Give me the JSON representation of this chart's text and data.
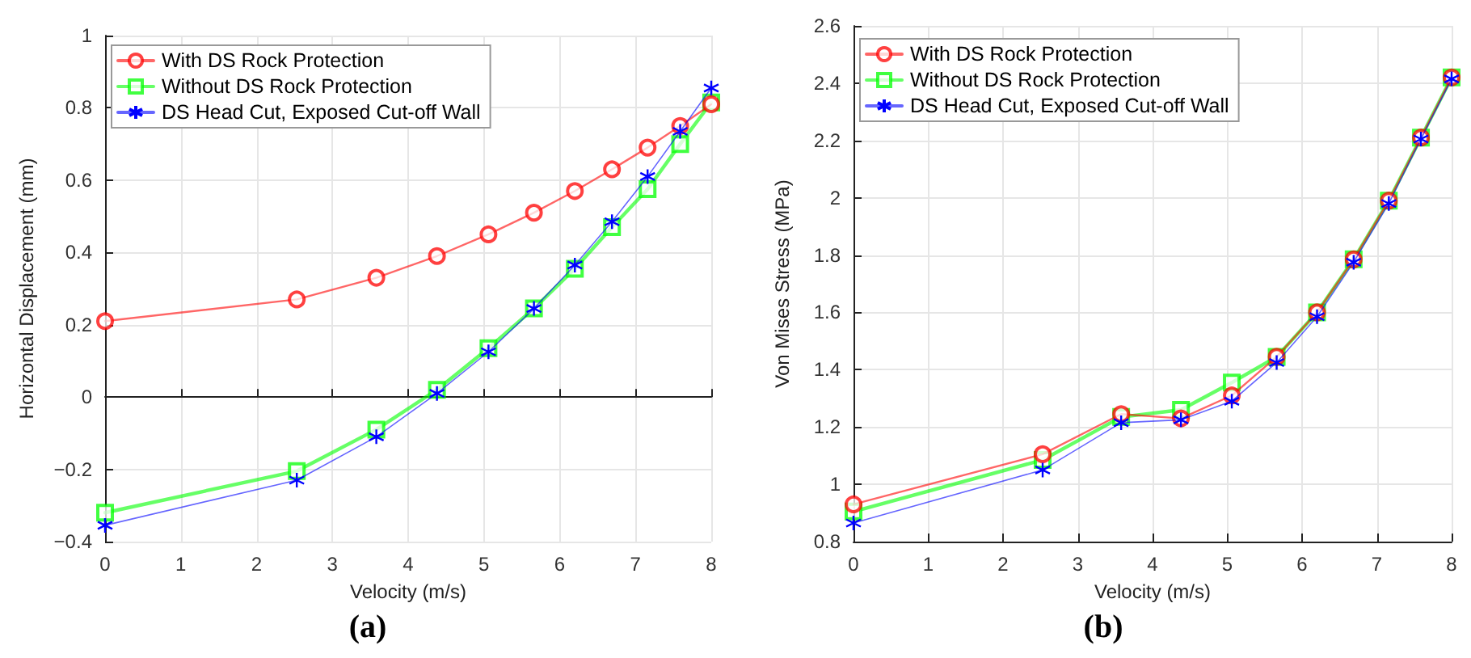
{
  "chart_data": [
    {
      "type": "line",
      "title": "(a)",
      "xlabel": "Velocity (m/s)",
      "ylabel": "Horizontal Displacement (mm)",
      "x": [
        0,
        2.53,
        3.58,
        4.38,
        5.06,
        5.66,
        6.2,
        6.69,
        7.16,
        7.59,
        8
      ],
      "xlim": [
        0,
        8
      ],
      "xticks": [
        0,
        1,
        2,
        3,
        4,
        5,
        6,
        7,
        8
      ],
      "ylim": [
        -0.4,
        1
      ],
      "yticks": [
        -0.4,
        -0.2,
        0,
        0.2,
        0.4,
        0.6,
        0.8,
        1
      ],
      "grid": true,
      "legend": "top left",
      "series": [
        {
          "name": "With DS Rock Protection",
          "color": "#ff0000",
          "marker": "circle",
          "values": [
            0.21,
            0.27,
            0.33,
            0.39,
            0.45,
            0.51,
            0.57,
            0.63,
            0.69,
            0.75,
            0.81
          ]
        },
        {
          "name": "Without DS Rock Protection",
          "color": "#00ff00",
          "marker": "square",
          "values": [
            -0.32,
            -0.205,
            -0.09,
            0.02,
            0.135,
            0.245,
            0.355,
            0.47,
            0.575,
            0.7,
            0.815
          ]
        },
        {
          "name": "DS Head Cut, Exposed Cut-off Wall",
          "color": "#0000ff",
          "marker": "cross",
          "values": [
            -0.355,
            -0.23,
            -0.11,
            0.01,
            0.125,
            0.245,
            0.365,
            0.485,
            0.61,
            0.735,
            0.855
          ]
        }
      ]
    },
    {
      "type": "line",
      "title": "(b)",
      "xlabel": "Velocity (m/s)",
      "ylabel": "Von Mises Stress (MPa)",
      "x": [
        0,
        2.53,
        3.58,
        4.38,
        5.06,
        5.66,
        6.2,
        6.69,
        7.16,
        7.59,
        8
      ],
      "xlim": [
        0,
        8
      ],
      "xticks": [
        0,
        1,
        2,
        3,
        4,
        5,
        6,
        7,
        8
      ],
      "ylim": [
        0.8,
        2.6
      ],
      "yticks": [
        0.8,
        1,
        1.2,
        1.4,
        1.6,
        1.8,
        2,
        2.2,
        2.4,
        2.6
      ],
      "grid": true,
      "legend": "top left",
      "series": [
        {
          "name": "With DS Rock Protection",
          "color": "#ff0000",
          "marker": "circle",
          "values": [
            0.93,
            1.105,
            1.245,
            1.23,
            1.31,
            1.445,
            1.6,
            1.785,
            1.99,
            2.21,
            2.42
          ]
        },
        {
          "name": "Without DS Rock Protection",
          "color": "#00ff00",
          "marker": "square",
          "values": [
            0.905,
            1.085,
            1.235,
            1.26,
            1.355,
            1.445,
            1.6,
            1.785,
            1.99,
            2.21,
            2.42
          ]
        },
        {
          "name": "DS Head Cut, Exposed Cut-off Wall",
          "color": "#0000ff",
          "marker": "cross",
          "values": [
            0.865,
            1.05,
            1.215,
            1.225,
            1.29,
            1.425,
            1.585,
            1.775,
            1.98,
            2.205,
            2.415
          ]
        }
      ]
    }
  ]
}
